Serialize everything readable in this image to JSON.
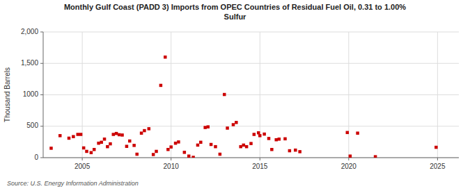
{
  "chart_data": {
    "type": "scatter",
    "title": "Monthly Gulf Coast (PADD 3) Imports from OPEC Countries of Residual Fuel Oil, 0.31 to 1.00%\nSulfur",
    "y_label": "Thousand Barrels",
    "annotations": [
      "Source: U.S. Energy Information Administration"
    ],
    "color": "#cc0000",
    "marker": "square",
    "grid": true,
    "xlim": [
      2002.8,
      2026.2
    ],
    "ylim": [
      0,
      2000
    ],
    "xticks": [
      2005,
      2010,
      2015,
      2020,
      2025
    ],
    "yticks": [
      0,
      500,
      1000,
      {
        "value": 1500,
        "label": "1,500"
      },
      {
        "value": 2000,
        "label": "2,000"
      }
    ],
    "x": [
      2003.25,
      2003.75,
      2004.25,
      2004.5,
      2004.75,
      2004.92,
      2005.08,
      2005.25,
      2005.5,
      2005.67,
      2005.92,
      2006.08,
      2006.25,
      2006.42,
      2006.58,
      2006.75,
      2006.92,
      2007.08,
      2007.25,
      2007.5,
      2007.67,
      2007.92,
      2008.08,
      2008.33,
      2008.5,
      2008.75,
      2009.0,
      2009.17,
      2009.42,
      2009.67,
      2009.83,
      2010.0,
      2010.25,
      2010.42,
      2010.75,
      2011.0,
      2011.25,
      2011.5,
      2011.67,
      2011.92,
      2012.08,
      2012.25,
      2012.5,
      2012.75,
      2013.0,
      2013.17,
      2013.5,
      2013.67,
      2013.92,
      2014.08,
      2014.25,
      2014.5,
      2014.67,
      2014.92,
      2015.0,
      2015.25,
      2015.5,
      2015.67,
      2015.92,
      2016.08,
      2016.42,
      2016.67,
      2017.0,
      2017.25,
      2019.92,
      2020.08,
      2020.5,
      2021.5,
      2024.92
    ],
    "values": [
      150,
      350,
      310,
      335,
      370,
      370,
      155,
      100,
      80,
      130,
      230,
      245,
      295,
      175,
      220,
      370,
      385,
      365,
      360,
      180,
      265,
      195,
      55,
      390,
      430,
      460,
      50,
      100,
      1150,
      1600,
      130,
      170,
      230,
      250,
      85,
      25,
      5,
      200,
      245,
      480,
      490,
      210,
      175,
      55,
      1005,
      470,
      525,
      560,
      175,
      200,
      175,
      225,
      370,
      395,
      350,
      375,
      305,
      130,
      285,
      295,
      300,
      110,
      120,
      95,
      400,
      25,
      390,
      15,
      165
    ]
  }
}
